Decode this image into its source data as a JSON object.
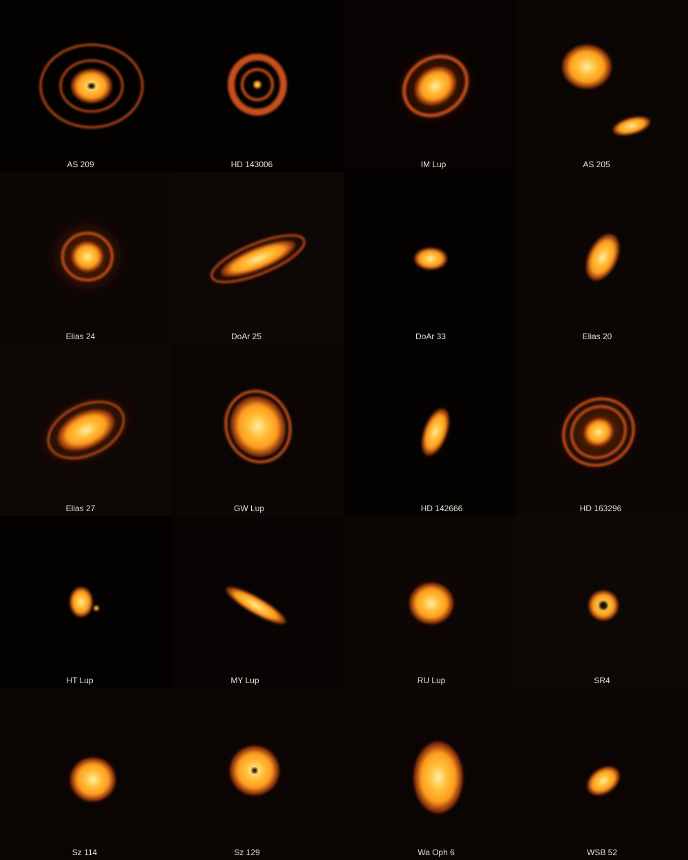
{
  "colors": {
    "background": "#050302",
    "disk_core": "#fff2a8",
    "disk_mid": "#ff9a1e",
    "disk_edge": "#a8300c",
    "label": "#e6e0da"
  },
  "disks": [
    {
      "label": "AS 209"
    },
    {
      "label": "HD 143006"
    },
    {
      "label": "IM Lup"
    },
    {
      "label": "AS 205"
    },
    {
      "label": "Elias 24"
    },
    {
      "label": "DoAr 25"
    },
    {
      "label": "DoAr 33"
    },
    {
      "label": "Elias 20"
    },
    {
      "label": "Elias 27"
    },
    {
      "label": "GW Lup"
    },
    {
      "label": "HD 142666"
    },
    {
      "label": "HD 163296"
    },
    {
      "label": "HT Lup"
    },
    {
      "label": "MY Lup"
    },
    {
      "label": "RU Lup"
    },
    {
      "label": "SR4"
    },
    {
      "label": "Sz 114"
    },
    {
      "label": "Sz 129"
    },
    {
      "label": "Wa Oph 6"
    },
    {
      "label": "WSB 52"
    }
  ]
}
